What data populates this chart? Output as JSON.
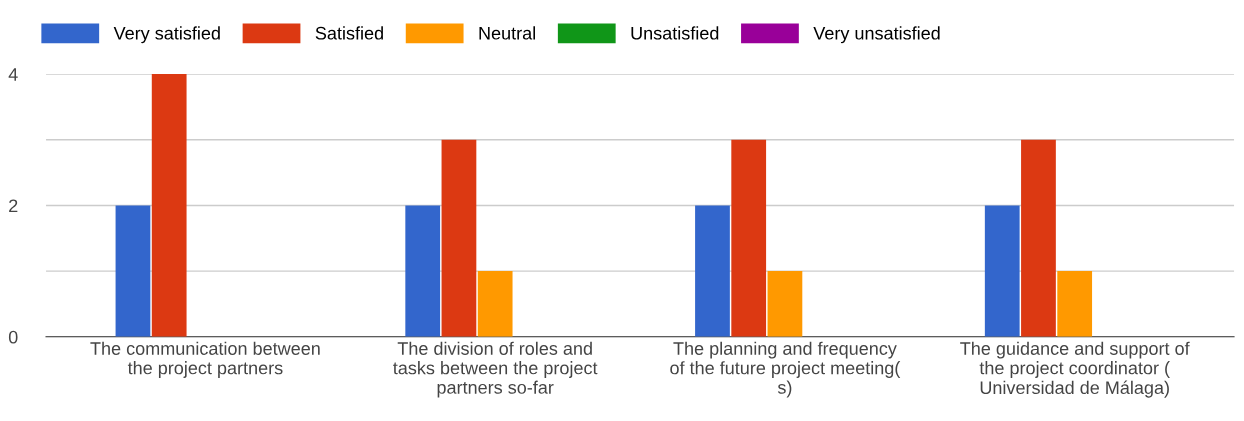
{
  "chart_data": {
    "type": "bar",
    "categories": [
      "The communication between\nthe project partners",
      "The division of roles and\ntasks between the project\npartners so-far",
      "The planning and frequency\nof the future project meeting(\ns)",
      "The guidance and support of\nthe project coordinator (\nUniversidad de Málaga)"
    ],
    "series": [
      {
        "name": "Very satisfied",
        "color": "#3366cc",
        "values": [
          2,
          2,
          2,
          2
        ]
      },
      {
        "name": "Satisfied",
        "color": "#dc3912",
        "values": [
          4,
          3,
          3,
          3
        ]
      },
      {
        "name": "Neutral",
        "color": "#ff9900",
        "values": [
          0,
          1,
          1,
          1
        ]
      },
      {
        "name": "Unsatisfied",
        "color": "#109618",
        "values": [
          0,
          0,
          0,
          0
        ]
      },
      {
        "name": "Very unsatisfied",
        "color": "#990099",
        "values": [
          0,
          0,
          0,
          0
        ]
      }
    ],
    "ylim": [
      0,
      4
    ],
    "yticks": [
      0,
      {
        "value": 1,
        "label": null
      },
      2,
      {
        "value": 3,
        "label": null
      },
      4
    ],
    "grid": "y",
    "legend": "top left"
  }
}
